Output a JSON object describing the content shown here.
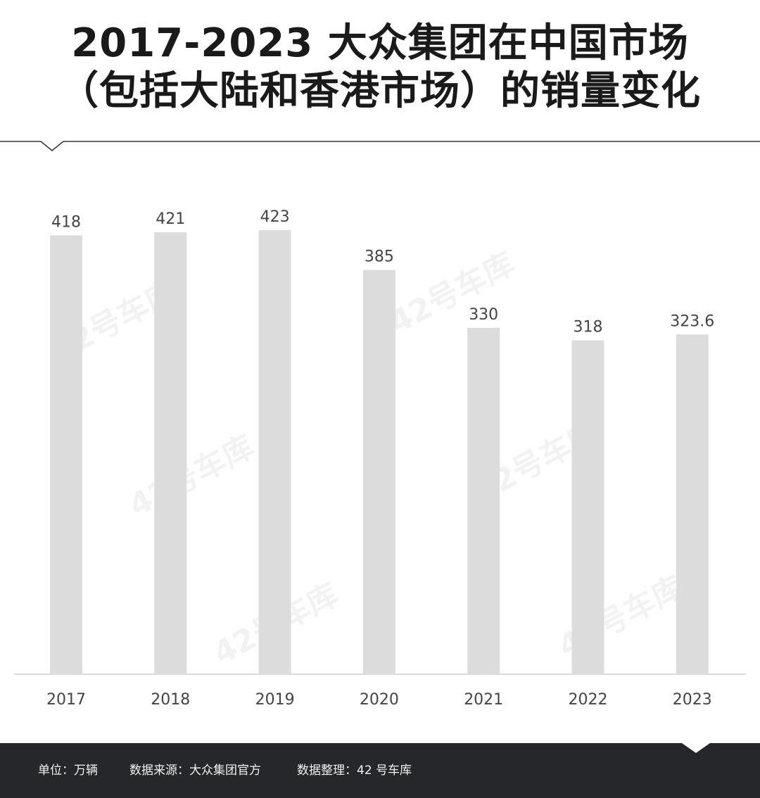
{
  "title": {
    "line1": "2017-2023 大众集团在中国市场",
    "line2": "（包括大陆和香港市场）的销量变化"
  },
  "watermark": "42号车库",
  "chart_data": {
    "type": "bar",
    "categories": [
      "2017",
      "2018",
      "2019",
      "2020",
      "2021",
      "2022",
      "2023"
    ],
    "values": [
      418,
      421,
      423,
      385,
      330,
      318,
      323.6
    ],
    "data_labels": [
      "418",
      "421",
      "423",
      "385",
      "330",
      "318",
      "323.6"
    ],
    "ylim": [
      0,
      480
    ],
    "grid": false,
    "bar_color": "#dcdcdc",
    "label_color": "#444444"
  },
  "footer": {
    "unit": "单位：万辆",
    "source": "数据来源：大众集团官方",
    "compiler": "数据整理：42 号车库"
  },
  "colors": {
    "footer_bg": "#25272b",
    "title": "#1a1a1a",
    "bar": "#dcdcdc"
  }
}
